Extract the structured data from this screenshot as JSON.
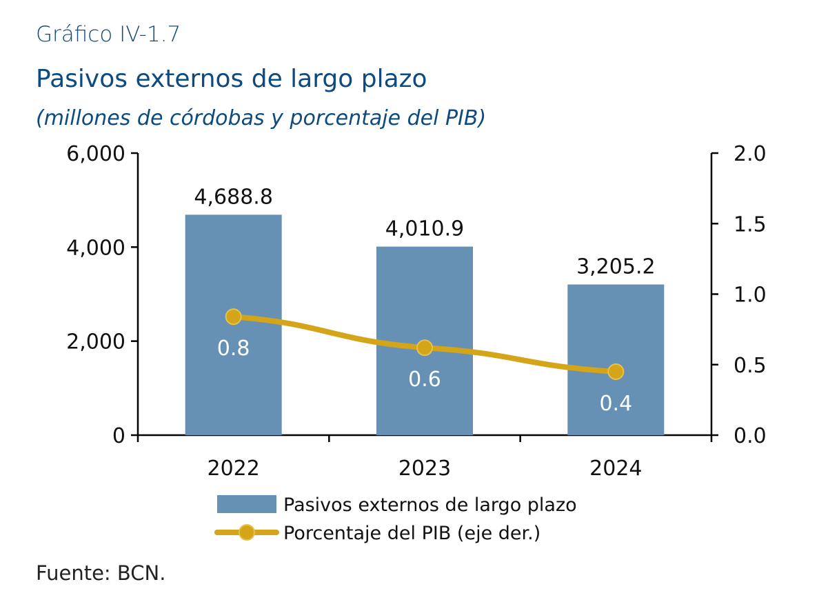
{
  "header": {
    "kicker": "Gráfico IV-1.7",
    "title": "Pasivos externos de largo plazo",
    "subtitle": "(millones de córdobas y porcentaje del PIB)"
  },
  "source": "Fuente: BCN.",
  "colors": {
    "bars": "#6691b5",
    "line": "#d4a419",
    "title": "#0d4a80"
  },
  "chart_data": {
    "type": "bar",
    "categories": [
      "2022",
      "2023",
      "2024"
    ],
    "series": [
      {
        "name": "Pasivos externos de largo plazo",
        "type": "bar",
        "axis": "left",
        "values": [
          4688.8,
          4010.9,
          3205.2
        ],
        "labels": [
          "4,688.8",
          "4,010.9",
          "3,205.2"
        ]
      },
      {
        "name": "Porcentaje del PIB (eje der.)",
        "type": "line",
        "axis": "right",
        "values": [
          0.84,
          0.62,
          0.45
        ],
        "labels": [
          "0.8",
          "0.6",
          "0.4"
        ]
      }
    ],
    "y_left": {
      "range": [
        0,
        6000
      ],
      "ticks": [
        0,
        2000,
        4000,
        6000
      ],
      "tick_labels": [
        "0",
        "2,000",
        "4,000",
        "6,000"
      ]
    },
    "y_right": {
      "range": [
        0,
        2
      ],
      "ticks": [
        0,
        0.5,
        1,
        1.5,
        2
      ],
      "tick_labels": [
        "0.0",
        "0.5",
        "1.0",
        "1.5",
        "2.0"
      ]
    },
    "grid": false,
    "legend": "bottom-center"
  }
}
